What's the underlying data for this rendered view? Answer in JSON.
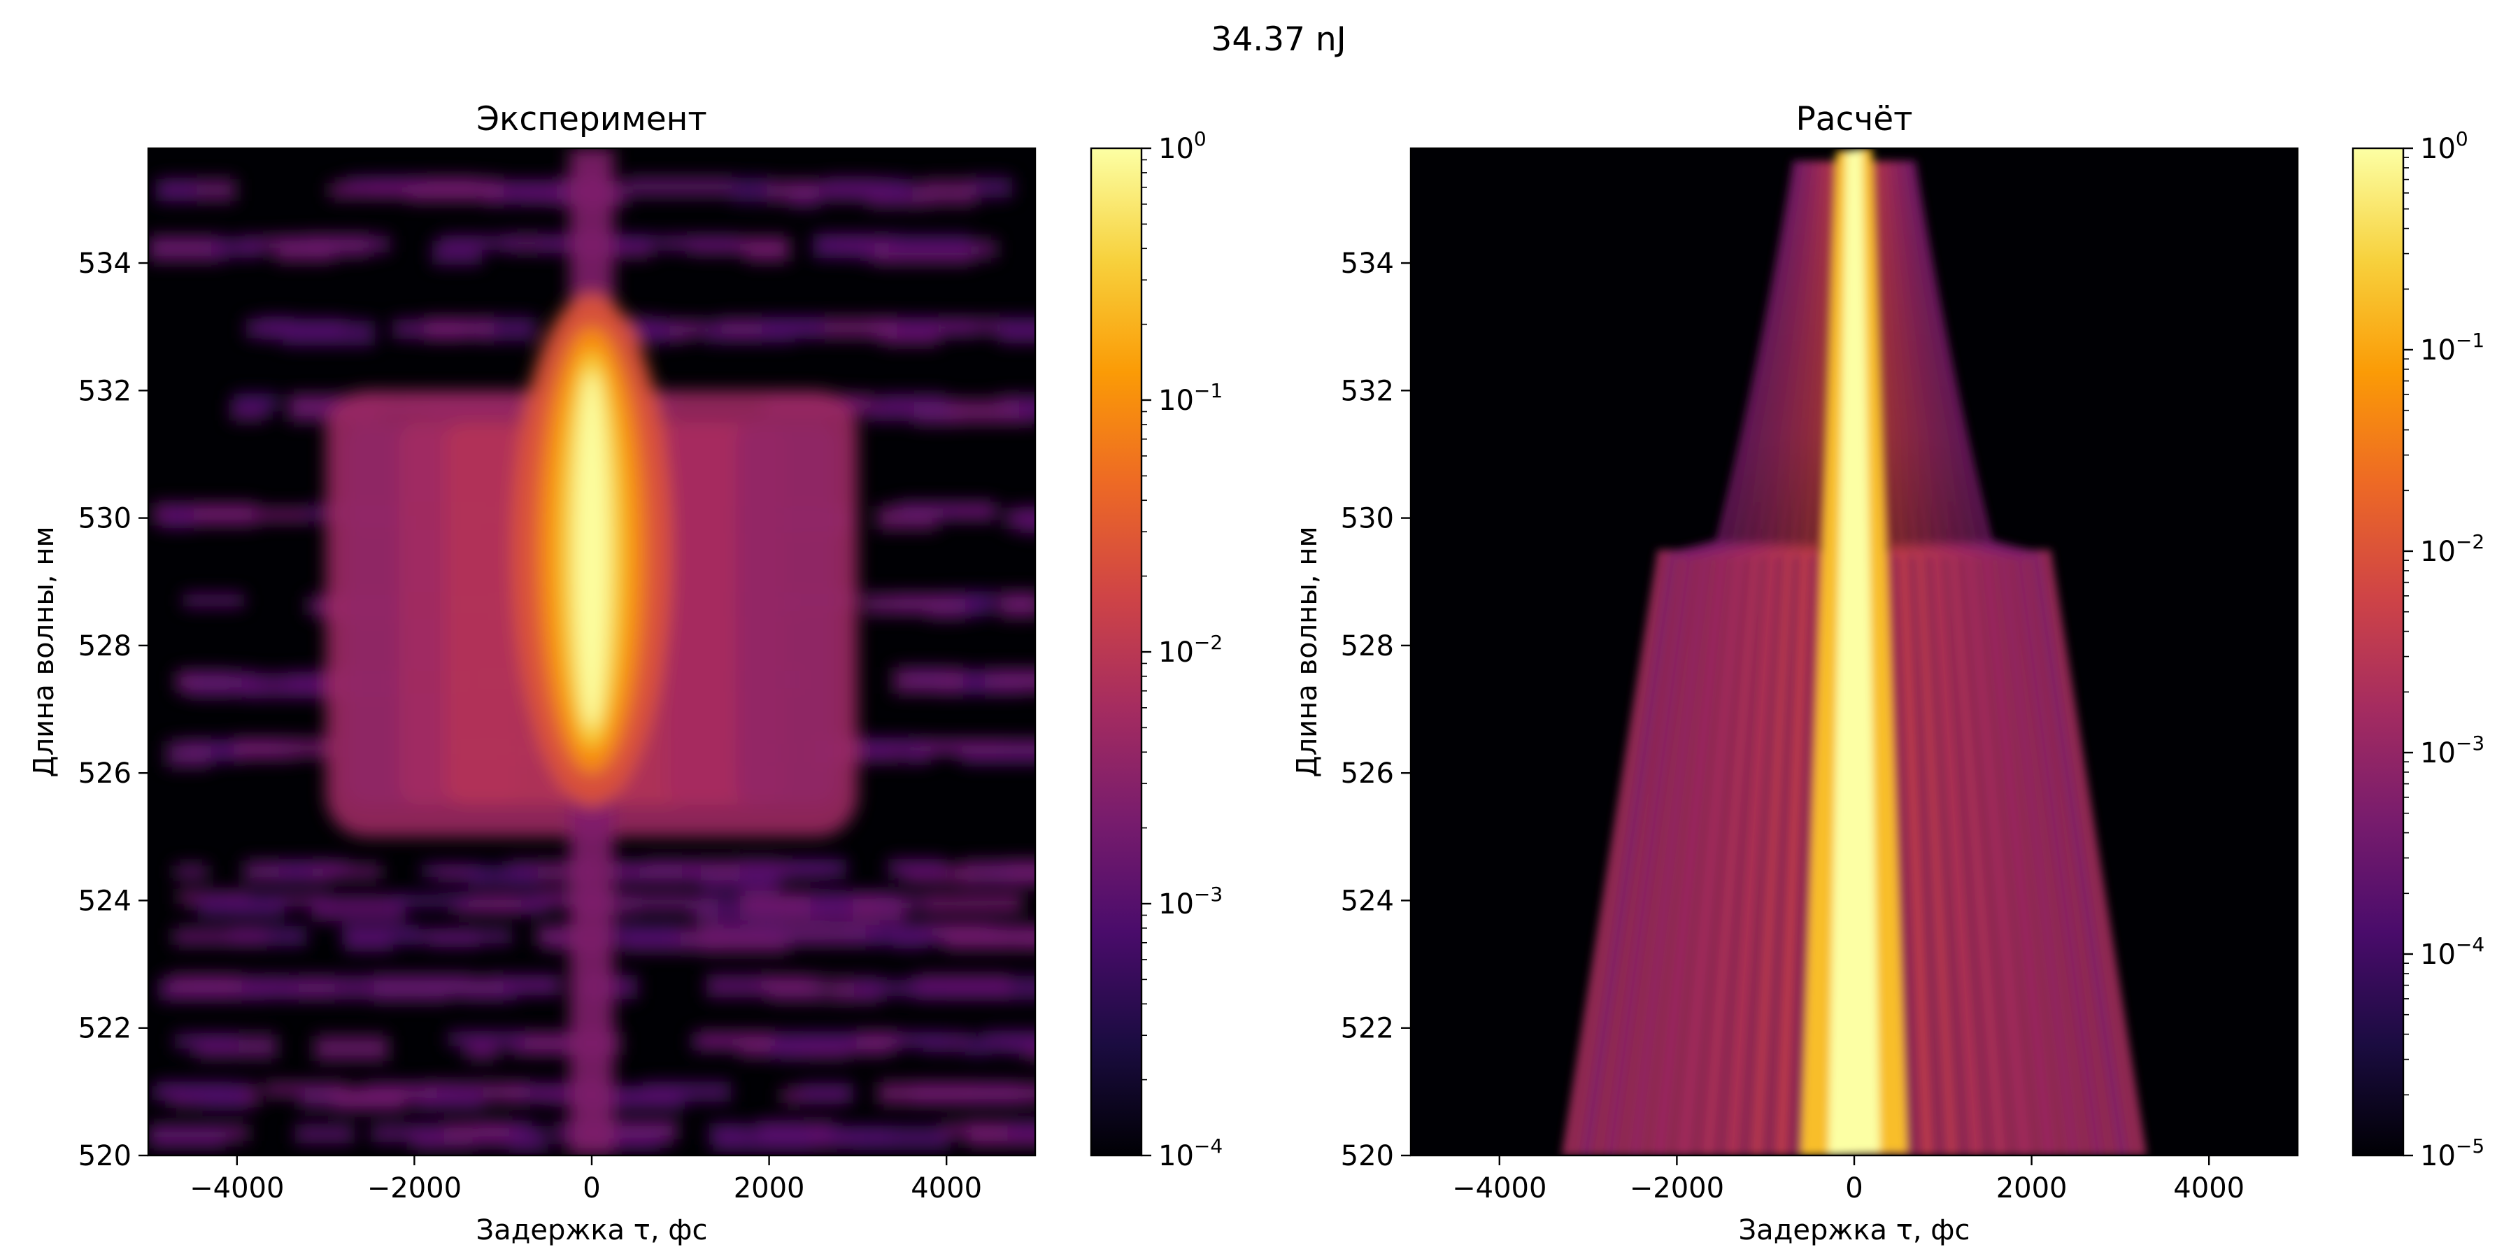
{
  "figure": {
    "suptitle": "34.37 nJ"
  },
  "colormap": [
    "#000004",
    "#1b0c41",
    "#4a0c6b",
    "#781c6d",
    "#a52c60",
    "#cf4446",
    "#ed6925",
    "#fb9b06",
    "#f7d13d",
    "#fcffa4"
  ],
  "chart_data": [
    {
      "type": "heatmap",
      "title": "Эксперимент",
      "xlabel": "Задержка τ, фс",
      "ylabel": "Длина волны, нм",
      "xlim": [
        -5000,
        5000
      ],
      "ylim": [
        520,
        535.8
      ],
      "xticks": [
        "−4000",
        "−2000",
        "0",
        "2000",
        "4000"
      ],
      "yticks": [
        "520",
        "522",
        "524",
        "526",
        "528",
        "530",
        "532",
        "534"
      ],
      "colorbar": {
        "scale": "log",
        "range": [
          0.0001,
          1
        ],
        "ticks": [
          {
            "mantissa": "10",
            "exponent": "0"
          },
          {
            "mantissa": "10",
            "exponent": "−1"
          },
          {
            "mantissa": "10",
            "exponent": "−2"
          },
          {
            "mantissa": "10",
            "exponent": "−3"
          },
          {
            "mantissa": "10",
            "exponent": "−4"
          }
        ]
      },
      "features": {
        "central_peak_delay": 0,
        "peak_wavelength_range": [
          526,
          533
        ],
        "spectral_broadening_range": [
          525,
          532
        ],
        "broadened_delay_range": [
          -3000,
          3000
        ],
        "noise_floor": 0.0002
      }
    },
    {
      "type": "heatmap",
      "title": "Расчёт",
      "xlabel": "Задержка τ, фс",
      "ylabel": "Длина волны, нм",
      "xlim": [
        -5000,
        5000
      ],
      "ylim": [
        520,
        535.8
      ],
      "xticks": [
        "−4000",
        "−2000",
        "0",
        "2000",
        "4000"
      ],
      "yticks": [
        "520",
        "522",
        "524",
        "526",
        "528",
        "530",
        "532",
        "534"
      ],
      "colorbar": {
        "scale": "log",
        "range": [
          1e-05,
          1
        ],
        "ticks": [
          {
            "mantissa": "10",
            "exponent": "0"
          },
          {
            "mantissa": "10",
            "exponent": "−1"
          },
          {
            "mantissa": "10",
            "exponent": "−2"
          },
          {
            "mantissa": "10",
            "exponent": "−3"
          },
          {
            "mantissa": "10",
            "exponent": "−4"
          },
          {
            "mantissa": "10",
            "exponent": "−5"
          }
        ]
      },
      "features": {
        "central_peak_delay": 0,
        "fringe_edge_delay_at_520nm": 3300,
        "fringe_edge_delay_at_535nm": 1500,
        "step_wavelength": 529.5
      }
    }
  ]
}
